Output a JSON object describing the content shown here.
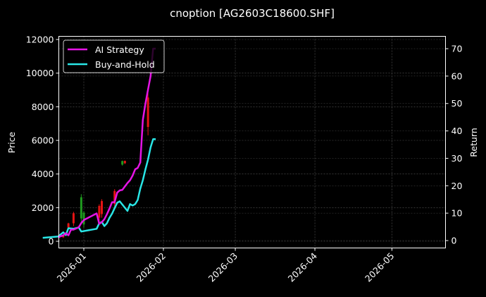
{
  "chart_data": {
    "type": "line",
    "title": "cnoption [AG2603C18600.SHF]",
    "xlabel": "",
    "ylabel": "Price",
    "ylabel_right": "Return",
    "ylim": [
      -400,
      12300
    ],
    "ylim_right": [
      -2.5,
      73.5
    ],
    "yticks": [
      0,
      2000,
      4000,
      6000,
      8000,
      10000,
      12000
    ],
    "yticks_right": [
      0,
      10,
      20,
      30,
      40,
      50,
      60,
      70
    ],
    "xticks": [
      "2026-01",
      "2026-02",
      "2026-03",
      "2026-04",
      "2026-05"
    ],
    "grid": true,
    "legend_position": "upper left",
    "legend": [
      "AI Strategy",
      "Buy-and-Hold"
    ],
    "colors": {
      "background": "#000000",
      "ai_strategy": "#e614e6",
      "buy_and_hold": "#29e6e6",
      "candle_up": "#1f9a1f",
      "candle_down": "#e61414",
      "grid": "#555555",
      "axes": "#ffffff"
    },
    "series": [
      {
        "name": "AI Strategy",
        "axis": "right",
        "x": [
          "2025-12-22",
          "2025-12-24",
          "2025-12-25",
          "2025-12-26",
          "2025-12-27",
          "2025-12-28",
          "2025-12-30",
          "2025-12-31",
          "2026-01-01",
          "2026-01-06",
          "2026-01-07",
          "2026-01-08",
          "2026-01-09",
          "2026-01-10",
          "2026-01-11",
          "2026-01-12",
          "2026-01-13",
          "2026-01-14",
          "2026-01-15",
          "2026-01-16",
          "2026-01-18",
          "2026-01-19",
          "2026-01-20",
          "2026-01-21",
          "2026-01-22",
          "2026-01-23",
          "2026-01-24",
          "2026-01-25",
          "2026-01-26",
          "2026-01-27",
          "2026-01-28",
          "2026-01-29"
        ],
        "values": [
          1.2,
          1.9,
          2.7,
          1.9,
          4.0,
          4.0,
          4.8,
          6.4,
          7.5,
          9.9,
          6.1,
          6.7,
          7.8,
          9.6,
          11.7,
          14.0,
          14.0,
          17.5,
          18.3,
          18.5,
          21.0,
          22.0,
          23.7,
          26.0,
          26.5,
          28.5,
          44.0,
          50.0,
          55.0,
          60.0,
          70.0,
          70.0
        ]
      },
      {
        "name": "Buy-and-Hold",
        "axis": "right",
        "x": [
          "2025-12-16",
          "2025-12-22",
          "2025-12-24",
          "2025-12-25",
          "2025-12-26",
          "2025-12-28",
          "2025-12-30",
          "2025-12-31",
          "2026-01-06",
          "2026-01-07",
          "2026-01-08",
          "2026-01-09",
          "2026-01-10",
          "2026-01-11",
          "2026-01-12",
          "2026-01-13",
          "2026-01-14",
          "2026-01-15",
          "2026-01-18",
          "2026-01-19",
          "2026-01-20",
          "2026-01-21",
          "2026-01-22",
          "2026-01-23",
          "2026-01-24",
          "2026-01-25",
          "2026-01-26",
          "2026-01-27",
          "2026-01-28",
          "2026-01-29"
        ],
        "values": [
          1.0,
          1.5,
          3.0,
          2.0,
          4.5,
          4.3,
          4.8,
          3.3,
          4.3,
          6.3,
          6.8,
          5.3,
          6.3,
          8.3,
          9.8,
          11.8,
          13.8,
          14.3,
          10.8,
          13.3,
          12.8,
          13.3,
          14.8,
          19.0,
          22.0,
          26.0,
          29.5,
          34.0,
          37.0,
          37.0
        ]
      }
    ],
    "candles": {
      "axis": "left",
      "approx_ranges": [
        {
          "x": "2025-12-24",
          "low": 200,
          "high": 400,
          "dir": "down"
        },
        {
          "x": "2025-12-26",
          "low": 750,
          "high": 1100,
          "dir": "down"
        },
        {
          "x": "2025-12-28",
          "low": 900,
          "high": 1750,
          "dir": "down"
        },
        {
          "x": "2025-12-31",
          "low": 1000,
          "high": 2800,
          "dir": "up"
        },
        {
          "x": "2026-01-01",
          "low": 800,
          "high": 1800,
          "dir": "up"
        },
        {
          "x": "2026-01-07",
          "low": 1200,
          "high": 2200,
          "dir": "down"
        },
        {
          "x": "2026-01-08",
          "low": 1400,
          "high": 2500,
          "dir": "down"
        },
        {
          "x": "2026-01-13",
          "low": 2000,
          "high": 3100,
          "dir": "down"
        },
        {
          "x": "2026-01-16",
          "low": 4500,
          "high": 4800,
          "dir": "up"
        },
        {
          "x": "2026-01-17",
          "low": 4600,
          "high": 4800,
          "dir": "down"
        },
        {
          "x": "2026-01-26",
          "low": 6300,
          "high": 8800,
          "dir": "down"
        }
      ]
    }
  }
}
